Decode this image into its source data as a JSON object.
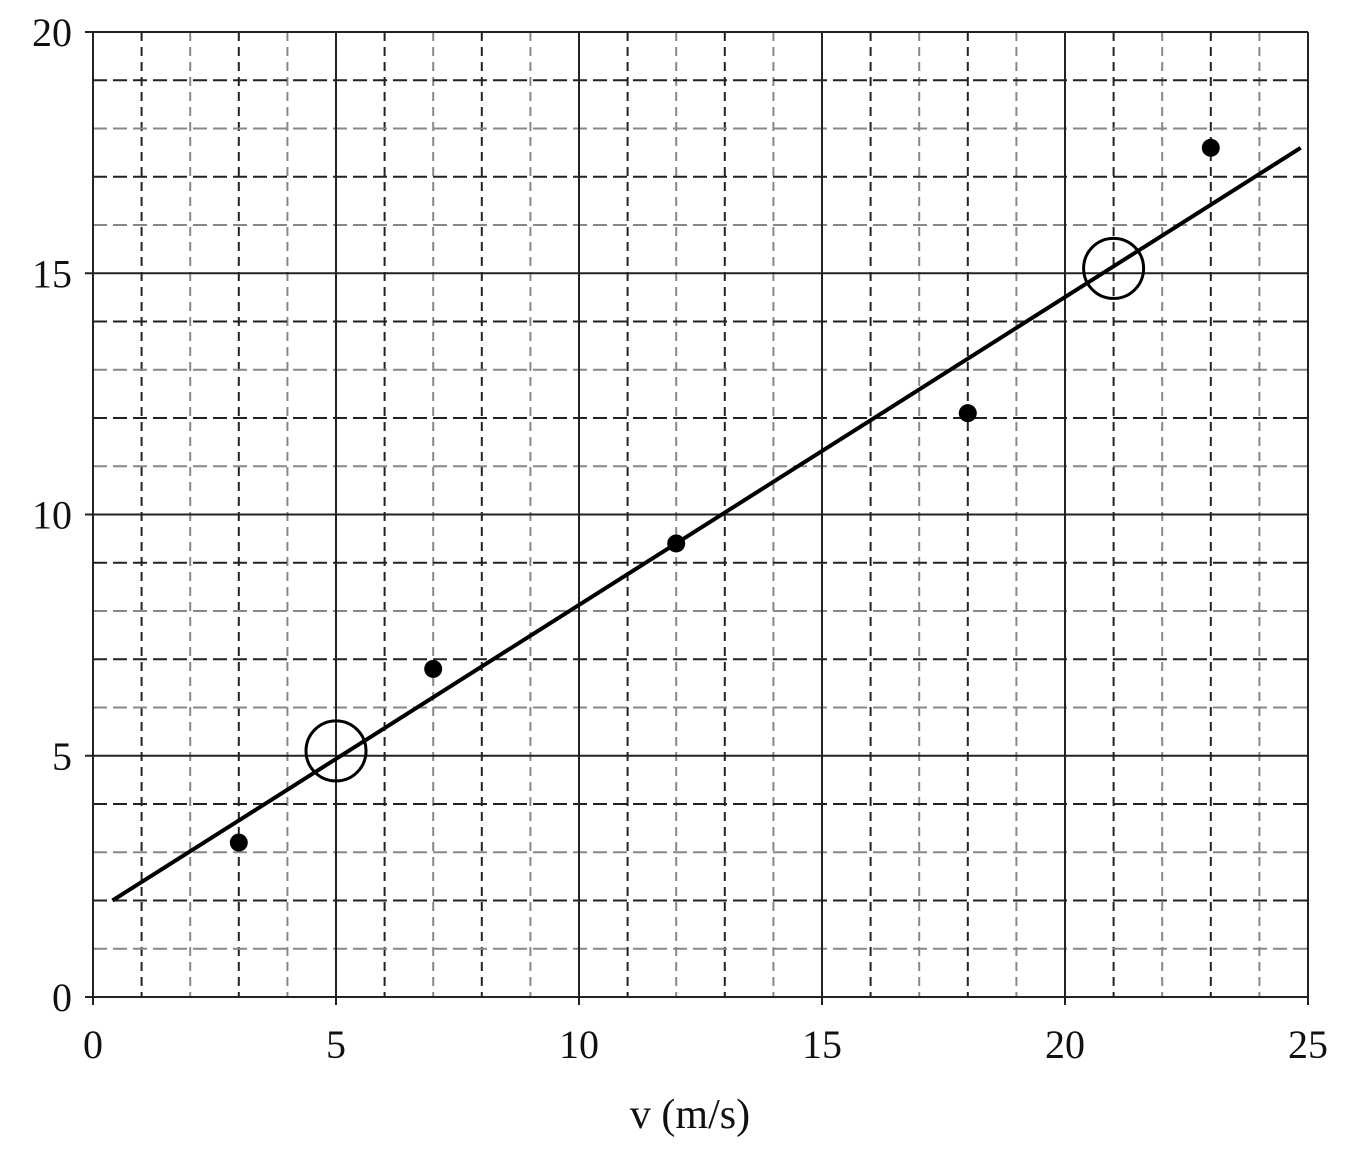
{
  "chart_data": {
    "type": "scatter",
    "x_label": "v (m/s)",
    "xlim": [
      0,
      25
    ],
    "ylim": [
      0,
      20
    ],
    "xticks": [
      0,
      5,
      10,
      15,
      20,
      25
    ],
    "yticks": [
      0,
      5,
      10,
      15,
      20
    ],
    "xminorticks": [
      1,
      2,
      3,
      4,
      6,
      7,
      8,
      9,
      11,
      12,
      13,
      14,
      16,
      17,
      18,
      19,
      21,
      22,
      23,
      24
    ],
    "yminorticks": [
      1,
      2,
      3,
      4,
      6,
      7,
      8,
      9,
      11,
      12,
      13,
      14,
      16,
      17,
      18,
      19
    ],
    "grid": true,
    "color": "#000000",
    "points": {
      "x": [
        3,
        7,
        12,
        18,
        23
      ],
      "y": [
        3.2,
        6.8,
        9.4,
        12.1,
        17.6
      ]
    },
    "fit_line": {
      "x": [
        0.4,
        24.85
      ],
      "y": [
        2.0,
        17.6
      ]
    },
    "circled": {
      "x": [
        5,
        21
      ],
      "y": [
        5.1,
        15.1
      ]
    }
  }
}
